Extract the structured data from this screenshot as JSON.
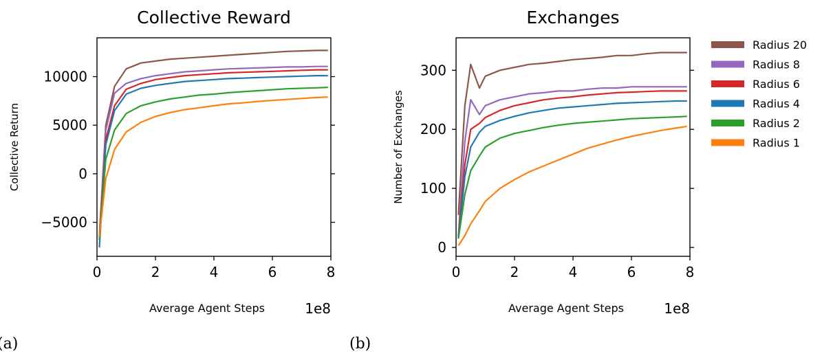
{
  "captions": [
    "(a)",
    "(b)"
  ],
  "legend": {
    "placement": "right",
    "entries": [
      {
        "label": "Radius 20",
        "color": "#8c564b"
      },
      {
        "label": "Radius 8",
        "color": "#9467bd"
      },
      {
        "label": "Radius 6",
        "color": "#d62728"
      },
      {
        "label": "Radius 4",
        "color": "#1f77b4"
      },
      {
        "label": "Radius 2",
        "color": "#2ca02c"
      },
      {
        "label": "Radius 1",
        "color": "#ff7f0e"
      }
    ]
  },
  "chart_data": [
    {
      "type": "line",
      "title": "Collective Reward",
      "xlabel": "Average Agent Steps",
      "ylabel": "Collective Return",
      "x_multiplier": "1e8",
      "xlim": [
        0,
        8
      ],
      "ylim": [
        -8500,
        14000
      ],
      "xticks": [
        0,
        2,
        4,
        6,
        8
      ],
      "xtick_labels": [
        "0",
        "2",
        "4",
        "6",
        "8"
      ],
      "yticks": [
        -5000,
        0,
        5000,
        10000
      ],
      "ytick_labels": [
        "−5000",
        "0",
        "5000",
        "10000"
      ],
      "grid": false,
      "x": [
        0.08,
        0.3,
        0.6,
        1.0,
        1.5,
        2.0,
        2.5,
        3.0,
        3.5,
        4.0,
        4.5,
        5.0,
        5.5,
        6.0,
        6.5,
        7.0,
        7.5,
        7.9
      ],
      "series": [
        {
          "name": "Radius 20",
          "color": "#8c564b",
          "values": [
            -6500,
            5000,
            9000,
            10800,
            11400,
            11600,
            11800,
            11900,
            12000,
            12100,
            12200,
            12300,
            12400,
            12500,
            12600,
            12650,
            12700,
            12700
          ]
        },
        {
          "name": "Radius 8",
          "color": "#9467bd",
          "values": [
            -6500,
            4500,
            8300,
            9300,
            9800,
            10100,
            10300,
            10500,
            10600,
            10700,
            10800,
            10850,
            10900,
            10950,
            11000,
            11000,
            11050,
            11050
          ]
        },
        {
          "name": "Radius 6",
          "color": "#d62728",
          "values": [
            -6800,
            3500,
            7000,
            8700,
            9300,
            9700,
            9900,
            10100,
            10200,
            10300,
            10400,
            10450,
            10500,
            10550,
            10600,
            10650,
            10700,
            10700
          ]
        },
        {
          "name": "Radius 4",
          "color": "#1f77b4",
          "values": [
            -7600,
            3000,
            6500,
            8200,
            8800,
            9100,
            9300,
            9500,
            9600,
            9700,
            9800,
            9850,
            9900,
            9950,
            10000,
            10050,
            10100,
            10100
          ]
        },
        {
          "name": "Radius 2",
          "color": "#2ca02c",
          "values": [
            -6800,
            1500,
            4500,
            6200,
            7000,
            7400,
            7700,
            7900,
            8100,
            8200,
            8350,
            8450,
            8550,
            8650,
            8750,
            8800,
            8850,
            8900
          ]
        },
        {
          "name": "Radius 1",
          "color": "#ff7f0e",
          "values": [
            -6500,
            -500,
            2500,
            4300,
            5300,
            5900,
            6300,
            6600,
            6800,
            7000,
            7200,
            7300,
            7450,
            7550,
            7650,
            7750,
            7850,
            7900
          ]
        }
      ]
    },
    {
      "type": "line",
      "title": "Exchanges",
      "xlabel": "Average Agent Steps",
      "ylabel": "Number of Exchanges",
      "x_multiplier": "1e8",
      "xlim": [
        0,
        8
      ],
      "ylim": [
        -15,
        355
      ],
      "xticks": [
        0,
        2,
        4,
        6,
        8
      ],
      "xtick_labels": [
        "0",
        "2",
        "4",
        "6",
        "8"
      ],
      "yticks": [
        0,
        100,
        200,
        300
      ],
      "ytick_labels": [
        "0",
        "100",
        "200",
        "300"
      ],
      "grid": false,
      "x": [
        0.08,
        0.3,
        0.5,
        0.8,
        1.0,
        1.5,
        2.0,
        2.5,
        3.0,
        3.5,
        4.0,
        4.5,
        5.0,
        5.5,
        6.0,
        6.5,
        7.0,
        7.5,
        7.9
      ],
      "series": [
        {
          "name": "Radius 20",
          "color": "#8c564b",
          "values": [
            55,
            240,
            310,
            270,
            290,
            300,
            305,
            310,
            312,
            315,
            318,
            320,
            322,
            325,
            325,
            328,
            330,
            330,
            330
          ]
        },
        {
          "name": "Radius 8",
          "color": "#9467bd",
          "values": [
            20,
            180,
            250,
            225,
            240,
            250,
            255,
            260,
            262,
            265,
            265,
            268,
            270,
            270,
            272,
            272,
            272,
            272,
            272
          ]
        },
        {
          "name": "Radius 6",
          "color": "#d62728",
          "values": [
            18,
            140,
            200,
            210,
            220,
            232,
            240,
            245,
            250,
            253,
            255,
            258,
            260,
            262,
            263,
            264,
            265,
            265,
            265
          ]
        },
        {
          "name": "Radius 4",
          "color": "#1f77b4",
          "values": [
            15,
            120,
            170,
            195,
            205,
            215,
            222,
            228,
            232,
            236,
            238,
            240,
            242,
            244,
            245,
            246,
            247,
            248,
            248
          ]
        },
        {
          "name": "Radius 2",
          "color": "#2ca02c",
          "values": [
            15,
            90,
            130,
            155,
            170,
            185,
            193,
            198,
            203,
            207,
            210,
            212,
            214,
            216,
            218,
            219,
            220,
            221,
            222
          ]
        },
        {
          "name": "Radius 1",
          "color": "#ff7f0e",
          "values": [
            3,
            20,
            40,
            62,
            78,
            100,
            115,
            128,
            138,
            148,
            158,
            168,
            175,
            182,
            188,
            193,
            198,
            202,
            205
          ]
        }
      ]
    }
  ]
}
